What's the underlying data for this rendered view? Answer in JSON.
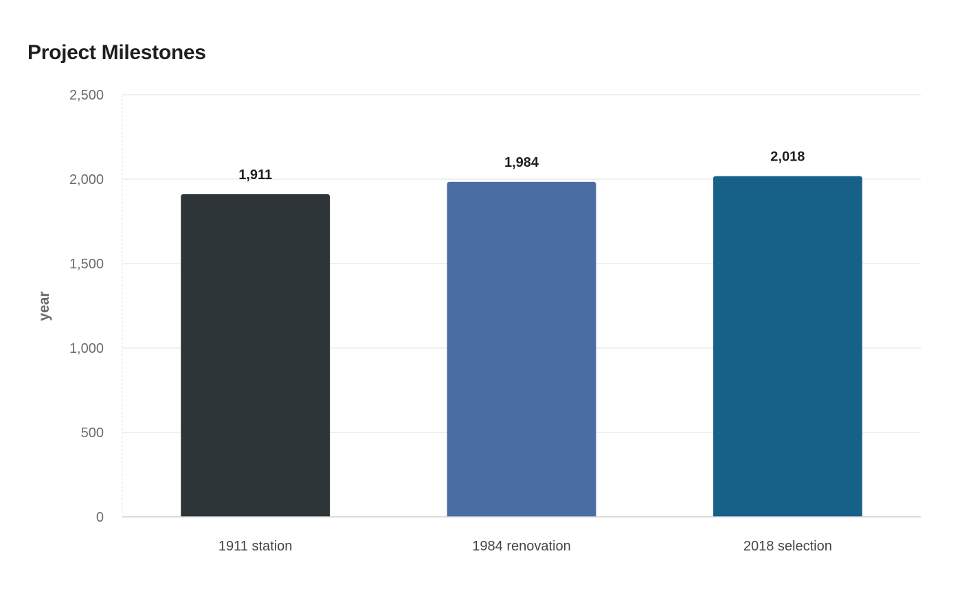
{
  "chart_data": {
    "type": "bar",
    "title": "Project Milestones",
    "xlabel": "",
    "ylabel": "year",
    "ylim": [
      0,
      2500
    ],
    "yticks": [
      0,
      500,
      1000,
      1500,
      2000,
      2500
    ],
    "ytick_labels": [
      "0",
      "500",
      "1,000",
      "1,500",
      "2,000",
      "2,500"
    ],
    "grid": true,
    "legend": "none",
    "categories": [
      "1911 station",
      "1984 renovation",
      "2018 selection"
    ],
    "values": [
      1911,
      1984,
      2018
    ],
    "value_labels": [
      "1,911",
      "1,984",
      "2,018"
    ],
    "colors": [
      "#2e3538",
      "#4a6ea3",
      "#176188"
    ]
  }
}
